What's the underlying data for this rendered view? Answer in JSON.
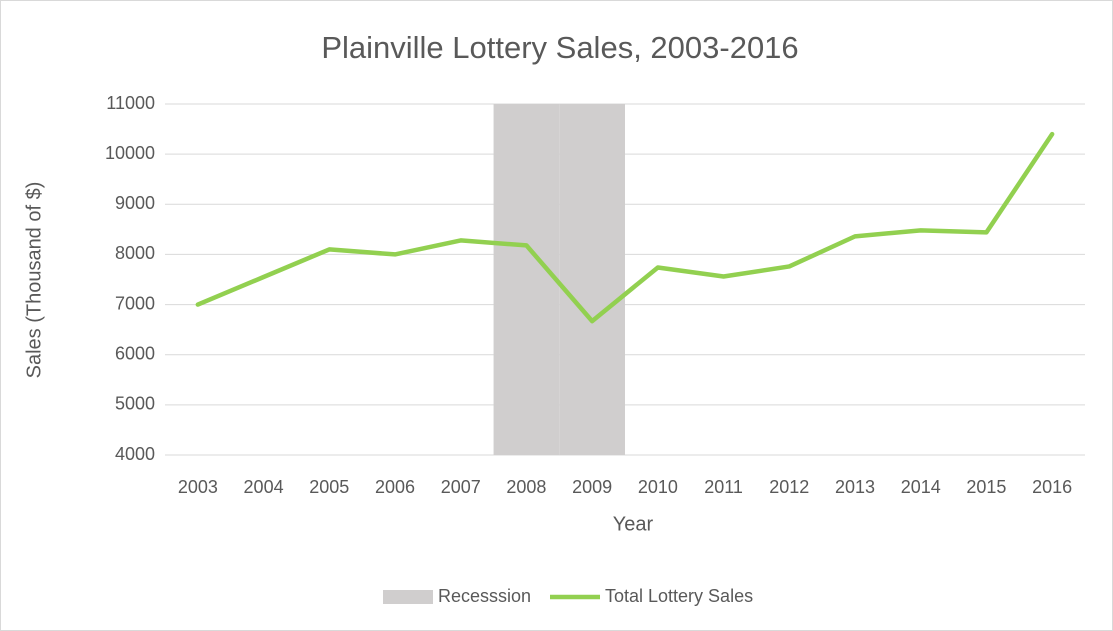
{
  "chart_data": {
    "type": "line",
    "title": "Plainville Lottery Sales, 2003-2016",
    "x_label": "Year",
    "y_label": "Sales (Thousand of $)",
    "categories": [
      "2003",
      "2004",
      "2005",
      "2006",
      "2007",
      "2008",
      "2009",
      "2010",
      "2011",
      "2012",
      "2013",
      "2014",
      "2015",
      "2016"
    ],
    "series": [
      {
        "name": "Recesssion",
        "type": "bar",
        "color": "#d0cece",
        "values": [
          null,
          null,
          null,
          null,
          null,
          11000,
          11000,
          null,
          null,
          null,
          null,
          null,
          null,
          null
        ]
      },
      {
        "name": "Total Lottery Sales",
        "type": "line",
        "color": "#92d050",
        "values": [
          7000,
          7550,
          8100,
          8000,
          8280,
          8180,
          6670,
          7740,
          7560,
          7760,
          8360,
          8480,
          8440,
          10400
        ]
      }
    ],
    "ylim": [
      4000,
      11000
    ],
    "yticks": [
      4000,
      5000,
      6000,
      7000,
      8000,
      9000,
      10000,
      11000
    ],
    "grid": true,
    "legend": "bottom"
  }
}
